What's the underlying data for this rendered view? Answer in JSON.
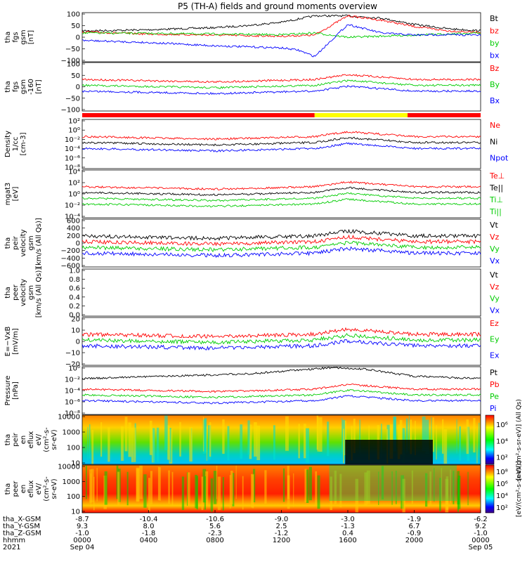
{
  "title": "P5 (TH-A) fields and ground moments overview",
  "colors": {
    "black": "#000000",
    "red": "#ff0000",
    "green": "#00cc00",
    "blue": "#0000ff",
    "yellow": "#ffff00"
  },
  "panels": [
    {
      "key": "fgs",
      "ylabel": [
        "tha",
        "fgs",
        "gsm",
        "[nT]"
      ],
      "ticks": [
        "100",
        "50",
        "0",
        "−50",
        "−100"
      ],
      "legend": [
        {
          "t": "Bt",
          "c": "black"
        },
        {
          "t": "bz",
          "c": "red"
        },
        {
          "t": "by",
          "c": "green"
        },
        {
          "t": "bx",
          "c": "blue"
        }
      ]
    },
    {
      "key": "fgs-dsl",
      "ylabel": [
        "tha",
        "fgs",
        "gsm",
        "-160",
        "[nT]"
      ],
      "ticks": [
        "100",
        "50",
        "0",
        "−50",
        "−100"
      ],
      "legend": [
        {
          "t": "Bz",
          "c": "red"
        },
        {
          "t": "By",
          "c": "green"
        },
        {
          "t": "Bx",
          "c": "blue"
        }
      ]
    },
    {
      "key": "density",
      "ylabel": [
        "Density",
        "1/cc",
        "[cm-3]"
      ],
      "ticks": [
        "10²",
        "10⁰",
        "10⁻²",
        "10⁻⁴",
        "10⁻⁶",
        "10⁻⁸"
      ],
      "legend": [
        {
          "t": "Ne",
          "c": "red"
        },
        {
          "t": "Ni",
          "c": "black"
        },
        {
          "t": "Npot",
          "c": "blue"
        }
      ]
    },
    {
      "key": "temp",
      "ylabel": [
        "mgat3",
        "[eV]"
      ],
      "ticks": [
        "10⁴",
        "10²",
        "10⁰",
        "10⁻²",
        "10⁻⁴"
      ],
      "legend": [
        {
          "t": "Te⊥",
          "c": "red"
        },
        {
          "t": "Te||",
          "c": "black"
        },
        {
          "t": "Ti⊥",
          "c": "green"
        },
        {
          "t": "Ti||",
          "c": "green"
        }
      ]
    },
    {
      "key": "peir-vel",
      "ylabel": [
        "tha",
        "peir",
        "velocity",
        "gsm",
        "[km/s (All Qs)]"
      ],
      "ticks": [
        "600",
        "400",
        "200",
        "0",
        "−200",
        "−400",
        "−600"
      ],
      "legend": [
        {
          "t": "Vt",
          "c": "black"
        },
        {
          "t": "Vz",
          "c": "red"
        },
        {
          "t": "Vy",
          "c": "green"
        },
        {
          "t": "Vx",
          "c": "blue"
        }
      ]
    },
    {
      "key": "peer-vel",
      "ylabel": [
        "tha",
        "peer",
        "velocity",
        "gsm",
        "[km/s (All Qs)]"
      ],
      "ticks": [
        "1.0",
        "0.8",
        "0.6",
        "0.4",
        "0.2",
        "0.0"
      ],
      "legend": [
        {
          "t": "Vt",
          "c": "black"
        },
        {
          "t": "Vz",
          "c": "red"
        },
        {
          "t": "Vy",
          "c": "green"
        },
        {
          "t": "Vx",
          "c": "blue"
        }
      ]
    },
    {
      "key": "efield",
      "ylabel": [
        "E=−VxB",
        "[mV/m]"
      ],
      "ticks": [
        "20",
        "10",
        "0",
        "−10",
        "−20"
      ],
      "legend": [
        {
          "t": "Ez",
          "c": "red"
        },
        {
          "t": "Ey",
          "c": "green"
        },
        {
          "t": "Ex",
          "c": "blue"
        }
      ]
    },
    {
      "key": "pressure",
      "ylabel": [
        "Pressure",
        "[nPa]"
      ],
      "ticks": [
        "10⁰",
        "10⁻²",
        "10⁻⁴",
        "10⁻⁶",
        "10⁻⁸"
      ],
      "legend": [
        {
          "t": "Pt",
          "c": "black"
        },
        {
          "t": "Pb",
          "c": "red"
        },
        {
          "t": "Pe",
          "c": "green"
        },
        {
          "t": "Pi",
          "c": "blue"
        }
      ]
    },
    {
      "key": "peir-spec",
      "ylabel": [
        "tha",
        "peir",
        "en",
        "eflux",
        "eV/",
        "(cm²-s-",
        "sr-eV)"
      ],
      "ticks": [
        "10000",
        "1000",
        "100",
        "10"
      ],
      "cbar_ticks": [
        "10⁶",
        "10⁴",
        "10²"
      ],
      "cbar_title": "[eV/(cm²-s-sr-eV)] (All Qs)"
    },
    {
      "key": "peer-spec",
      "ylabel": [
        "tha",
        "peer",
        "en",
        "eflux",
        "eV/",
        "(cm²-s-",
        "sr-eV)"
      ],
      "ticks": [
        "10000",
        "1000",
        "100",
        "10"
      ],
      "cbar_ticks": [
        "10⁸",
        "10⁶",
        "10⁴",
        "10²"
      ],
      "cbar_title": "[eV/(cm²-s-sr-eV)]"
    }
  ],
  "xaxis": {
    "row_labels": [
      "tha_X-GSM",
      "tha_Y-GSM",
      "tha_Z-GSM",
      "hhmm",
      "2021"
    ],
    "ticks": [
      {
        "x": "-8.7",
        "y": "9.3",
        "z": "-1.0",
        "hhmm": "0000",
        "date": "Sep 04"
      },
      {
        "x": "-10.4",
        "y": "8.0",
        "z": "-1.8",
        "hhmm": "0400",
        "date": ""
      },
      {
        "x": "-10.6",
        "y": "5.6",
        "z": "-2.3",
        "hhmm": "0800",
        "date": ""
      },
      {
        "x": "-9.0",
        "y": "2.5",
        "z": "-1.2",
        "hhmm": "1200",
        "date": ""
      },
      {
        "x": "-3.0",
        "y": "-1.3",
        "z": "0.4",
        "hhmm": "1600",
        "date": ""
      },
      {
        "x": "-1.9",
        "y": "6.7",
        "z": "-0.9",
        "hhmm": "2000",
        "date": ""
      },
      {
        "x": "-6.2",
        "y": "9.2",
        "z": "-1.0",
        "hhmm": "0000",
        "date": "Sep 05"
      }
    ]
  },
  "chart_data": {
    "type": "line",
    "title": "P5 (TH-A) fields and ground moments overview",
    "x_range_hours": [
      0,
      24
    ],
    "mode_bar": [
      {
        "start": 0,
        "end": 14,
        "color": "red"
      },
      {
        "start": 14,
        "end": 19.6,
        "color": "yellow"
      },
      {
        "start": 19.6,
        "end": 24,
        "color": "red"
      }
    ],
    "series_shape": [
      {
        "panel": "fgs",
        "name": "Bt",
        "points": [
          [
            0,
            30
          ],
          [
            2,
            32
          ],
          [
            4,
            35
          ],
          [
            6,
            40
          ],
          [
            8,
            45
          ],
          [
            10,
            55
          ],
          [
            12,
            70
          ],
          [
            13,
            85
          ],
          [
            14,
            100
          ],
          [
            16,
            100
          ],
          [
            18,
            90
          ],
          [
            20,
            60
          ],
          [
            22,
            40
          ],
          [
            24,
            30
          ]
        ]
      },
      {
        "panel": "fgs",
        "name": "bz",
        "points": [
          [
            0,
            25
          ],
          [
            4,
            15
          ],
          [
            8,
            10
          ],
          [
            12,
            5
          ],
          [
            14,
            10
          ],
          [
            16,
            100
          ],
          [
            18,
            80
          ],
          [
            20,
            50
          ],
          [
            22,
            30
          ],
          [
            24,
            22
          ]
        ]
      },
      {
        "panel": "fgs",
        "name": "by",
        "points": [
          [
            0,
            20
          ],
          [
            4,
            18
          ],
          [
            8,
            15
          ],
          [
            12,
            12
          ],
          [
            14,
            20
          ],
          [
            16,
            0
          ],
          [
            18,
            5
          ],
          [
            20,
            10
          ],
          [
            22,
            15
          ],
          [
            24,
            20
          ]
        ]
      },
      {
        "panel": "fgs",
        "name": "bx",
        "points": [
          [
            0,
            -15
          ],
          [
            4,
            -25
          ],
          [
            8,
            -40
          ],
          [
            12,
            -50
          ],
          [
            13,
            -60
          ],
          [
            14,
            -90
          ],
          [
            16,
            60
          ],
          [
            18,
            20
          ],
          [
            20,
            10
          ],
          [
            22,
            12
          ],
          [
            24,
            10
          ]
        ]
      },
      {
        "panel": "pressure",
        "name": "Pt",
        "points": [
          [
            0,
            0.5
          ],
          [
            6,
            1
          ],
          [
            12,
            3
          ],
          [
            15,
            20
          ],
          [
            17,
            15
          ],
          [
            20,
            2
          ],
          [
            24,
            0.6
          ]
        ]
      }
    ]
  }
}
